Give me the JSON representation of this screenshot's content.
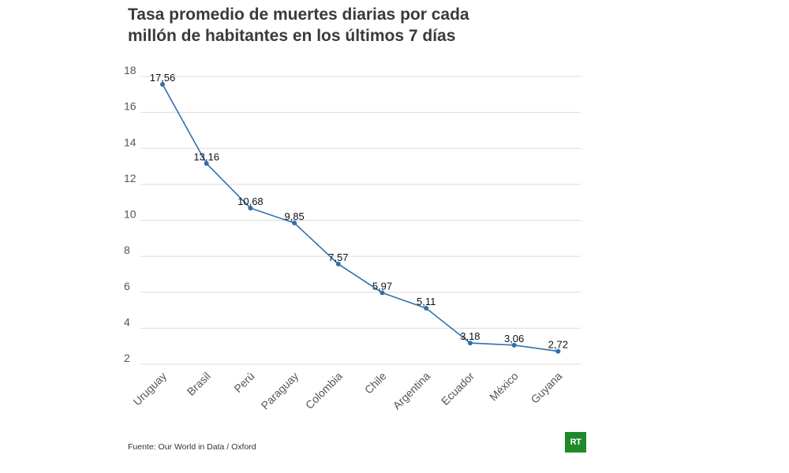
{
  "title": {
    "line1": "Tasa promedio de muertes diarias por cada",
    "line2": "millón de habitantes en los últimos 7 días"
  },
  "source": "Fuente: Our World in Data / Oxford",
  "logo": {
    "text": "RT",
    "color": "#1e8a2a"
  },
  "chart_data": {
    "type": "line",
    "title": "Tasa promedio de muertes diarias por cada millón de habitantes en los últimos 7 días",
    "categories": [
      "Uruguay",
      "Brasil",
      "Perú",
      "Paraguay",
      "Colombia",
      "Chile",
      "Argentina",
      "Ecuador",
      "México",
      "Guyana"
    ],
    "series": [
      {
        "values": [
          17.56,
          13.16,
          10.68,
          9.85,
          7.57,
          5.97,
          5.11,
          3.18,
          3.06,
          2.72
        ],
        "labels": [
          "17,56",
          "13,16",
          "10,68",
          "9,85",
          "7,57",
          "5,97",
          "5,11",
          "3,18",
          "3,06",
          "2,72"
        ],
        "color": "#2f6fae"
      }
    ],
    "ylim": [
      2,
      18
    ],
    "yticks": [
      "2",
      "4",
      "6",
      "8",
      "10",
      "12",
      "14",
      "16",
      "18"
    ],
    "xlabel": "",
    "ylabel": "",
    "grid": true,
    "legend": "none"
  }
}
